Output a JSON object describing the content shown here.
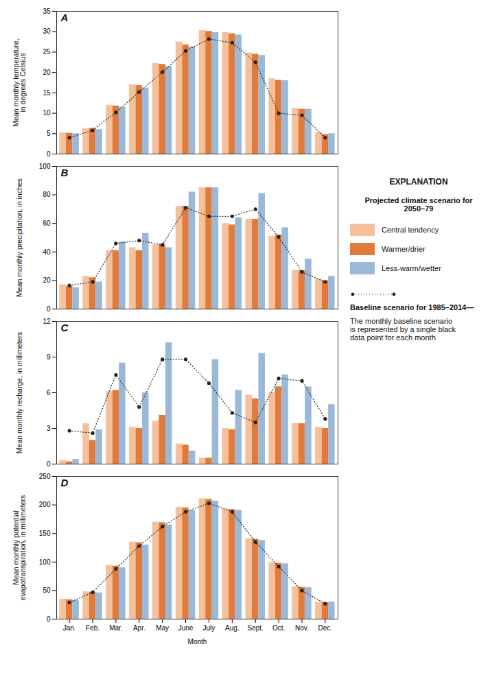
{
  "chart_data": [
    {
      "type": "bar",
      "title": "A",
      "ylabel": "Mean monthly temperature,\nin degrees Celsius",
      "categories": [
        "Jan.",
        "Feb.",
        "Mar.",
        "Apr.",
        "May",
        "June",
        "July",
        "Aug.",
        "Sept.",
        "Oct.",
        "Nov.",
        "Dec."
      ],
      "series": [
        {
          "name": "Central tendency",
          "type": "bar",
          "color": "#F5C09A",
          "values": [
            5.2,
            6.2,
            12.0,
            17.0,
            22.2,
            27.5,
            30.3,
            29.8,
            24.8,
            18.5,
            11.2,
            5.2
          ]
        },
        {
          "name": "Warmer/drier",
          "type": "bar",
          "color": "#E07B3B",
          "values": [
            5.1,
            6.3,
            11.8,
            16.8,
            22.0,
            26.8,
            30.1,
            29.5,
            24.5,
            18.1,
            11.0,
            4.8
          ]
        },
        {
          "name": "Less-warm/wetter",
          "type": "bar",
          "color": "#9AB8D8",
          "values": [
            5.0,
            6.0,
            11.5,
            16.2,
            21.5,
            26.3,
            29.8,
            29.2,
            24.2,
            18.0,
            11.0,
            5.0
          ]
        },
        {
          "name": "Baseline scenario for 1985–2014—",
          "type": "line",
          "marker": "circle",
          "line_style": "dotted",
          "color": "#222222",
          "values": [
            4.0,
            5.8,
            10.2,
            15.2,
            20.1,
            25.3,
            28.2,
            27.3,
            22.5,
            10.0,
            9.5,
            4.0
          ]
        }
      ],
      "ylim": [
        0,
        35
      ],
      "yticks": [
        0,
        5,
        10,
        15,
        20,
        25,
        30,
        35
      ],
      "tick_labels": "y",
      "legend": "right",
      "annotations": [
        "EXPLANATION",
        "Projected climate scenario for\n2050–79",
        "The monthly baseline scenario\nis represented by a single black\ndata point for each month"
      ]
    },
    {
      "type": "bar",
      "title": "B",
      "ylabel": "Mean monthly precipitation, in inches",
      "categories": [
        "Jan.",
        "Feb.",
        "Mar.",
        "Apr.",
        "May",
        "June",
        "July",
        "Aug.",
        "Sept.",
        "Oct.",
        "Nov.",
        "Dec."
      ],
      "series": [
        {
          "name": "Central tendency",
          "type": "bar",
          "color": "#F5C09A",
          "values": [
            17.0,
            23.0,
            41.0,
            43.0,
            45.0,
            72.0,
            85.0,
            60.0,
            63.0,
            51.0,
            27.0,
            21.0
          ]
        },
        {
          "name": "Warmer/drier",
          "type": "bar",
          "color": "#E07B3B",
          "values": [
            16.0,
            22.0,
            41.0,
            41.0,
            45.0,
            72.0,
            85.0,
            59.0,
            63.0,
            52.0,
            27.0,
            20.0
          ]
        },
        {
          "name": "Less-warm/wetter",
          "type": "bar",
          "color": "#9AB8D8",
          "values": [
            15.0,
            19.0,
            47.0,
            53.0,
            43.0,
            82.0,
            85.0,
            64.0,
            81.0,
            57.0,
            35.0,
            23.0
          ]
        },
        {
          "name": "Baseline scenario for 1985–2014—",
          "type": "line",
          "marker": "circle",
          "line_style": "dotted",
          "color": "#222222",
          "values": [
            16.5,
            19.0,
            46.0,
            48.0,
            45.0,
            71.0,
            65.0,
            65.0,
            70.0,
            50.5,
            26.0,
            19.0
          ]
        }
      ],
      "ylim": [
        0,
        100
      ],
      "yticks": [
        0,
        20,
        40,
        60,
        80,
        100
      ],
      "tick_labels": "y"
    },
    {
      "type": "bar",
      "title": "C",
      "ylabel": "Mean monthly recharge, in millimeters",
      "categories": [
        "Jan.",
        "Feb.",
        "Mar.",
        "Apr.",
        "May",
        "June",
        "July",
        "Aug.",
        "Sept.",
        "Oct.",
        "Nov.",
        "Dec."
      ],
      "series": [
        {
          "name": "Central tendency",
          "type": "bar",
          "color": "#F5C09A",
          "values": [
            0.3,
            3.4,
            6.1,
            3.1,
            3.6,
            1.7,
            0.5,
            3.0,
            5.8,
            6.0,
            3.4,
            3.1
          ]
        },
        {
          "name": "Warmer/drier",
          "type": "bar",
          "color": "#E07B3B",
          "values": [
            0.2,
            2.0,
            6.2,
            3.0,
            4.1,
            1.6,
            0.5,
            2.9,
            5.5,
            6.5,
            3.4,
            3.0
          ]
        },
        {
          "name": "Less-warm/wetter",
          "type": "bar",
          "color": "#9AB8D8",
          "values": [
            0.4,
            2.9,
            8.5,
            6.0,
            10.2,
            1.1,
            8.8,
            6.2,
            9.3,
            7.5,
            6.5,
            5.0
          ]
        },
        {
          "name": "Baseline scenario for 1985–2014—",
          "type": "line",
          "marker": "circle",
          "line_style": "dotted",
          "color": "#222222",
          "values": [
            2.8,
            2.6,
            7.5,
            4.8,
            8.8,
            8.8,
            6.8,
            4.3,
            3.5,
            7.2,
            7.0,
            3.8
          ]
        }
      ],
      "ylim": [
        0,
        12
      ],
      "yticks": [
        0,
        3,
        6,
        9,
        12
      ],
      "tick_labels": "y"
    },
    {
      "type": "bar",
      "title": "D",
      "ylabel": "Mean monthly potential\nevapotranspiration, in millimeters",
      "xlabel": "Month",
      "categories": [
        "Jan.",
        "Feb.",
        "Mar.",
        "Apr.",
        "May",
        "June",
        "July",
        "Aug.",
        "Sept.",
        "Oct.",
        "Nov.",
        "Dec."
      ],
      "series": [
        {
          "name": "Central tendency",
          "type": "bar",
          "color": "#F5C09A",
          "values": [
            35.0,
            48.0,
            94.0,
            135.0,
            170.0,
            196.0,
            211.0,
            193.0,
            141.0,
            99.0,
            57.0,
            30.0
          ]
        },
        {
          "name": "Warmer/drier",
          "type": "bar",
          "color": "#E07B3B",
          "values": [
            34.0,
            47.0,
            93.0,
            134.0,
            169.0,
            195.0,
            210.0,
            192.0,
            140.0,
            98.0,
            56.0,
            29.0
          ]
        },
        {
          "name": "Less-warm/wetter",
          "type": "bar",
          "color": "#9AB8D8",
          "values": [
            33.0,
            46.0,
            90.0,
            130.0,
            165.0,
            190.0,
            207.0,
            191.0,
            138.0,
            97.0,
            55.0,
            30.0
          ]
        },
        {
          "name": "Baseline scenario for 1985–2014—",
          "type": "line",
          "marker": "circle",
          "line_style": "dotted",
          "color": "#222222",
          "values": [
            29.0,
            47.0,
            88.0,
            128.0,
            162.0,
            188.0,
            203.0,
            188.0,
            135.0,
            92.0,
            50.0,
            27.0
          ]
        }
      ],
      "ylim": [
        0,
        250
      ],
      "yticks": [
        0,
        50,
        100,
        150,
        200,
        250
      ]
    }
  ]
}
